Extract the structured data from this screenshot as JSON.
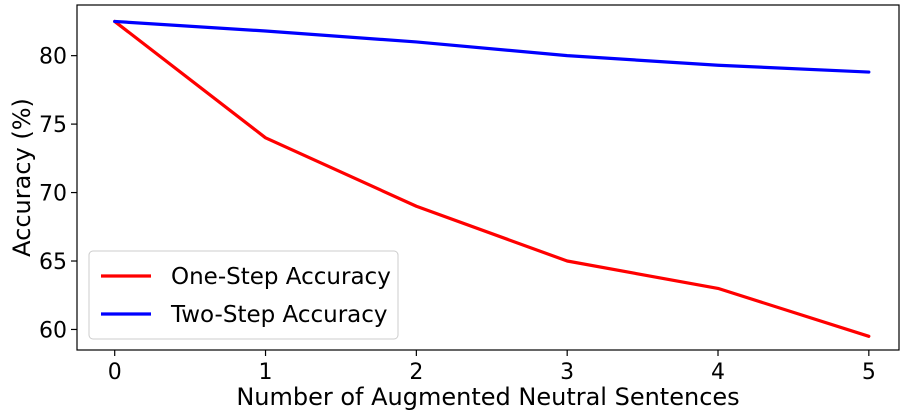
{
  "chart_data": {
    "type": "line",
    "title": "",
    "xlabel": "Number of Augmented Neutral Sentences",
    "ylabel": "Accuracy (%)",
    "x": [
      0,
      1,
      2,
      3,
      4,
      5
    ],
    "xlim": [
      -0.25,
      5.2
    ],
    "ylim": [
      58.5,
      83.7
    ],
    "x_ticks": [
      0,
      1,
      2,
      3,
      4,
      5
    ],
    "x_tick_labels": [
      "0",
      "1",
      "2",
      "3",
      "4",
      "5"
    ],
    "y_ticks": [
      60,
      65,
      70,
      75,
      80
    ],
    "y_tick_labels": [
      "60",
      "65",
      "70",
      "75",
      "80"
    ],
    "grid": false,
    "legend_position": "lower-left",
    "series": [
      {
        "name": "One-Step Accuracy",
        "color": "#ff0000",
        "values": [
          82.5,
          74.0,
          69.0,
          65.0,
          63.0,
          59.5
        ]
      },
      {
        "name": "Two-Step Accuracy",
        "color": "#0000ff",
        "values": [
          82.5,
          81.8,
          81.0,
          80.0,
          79.3,
          78.8
        ]
      }
    ]
  }
}
